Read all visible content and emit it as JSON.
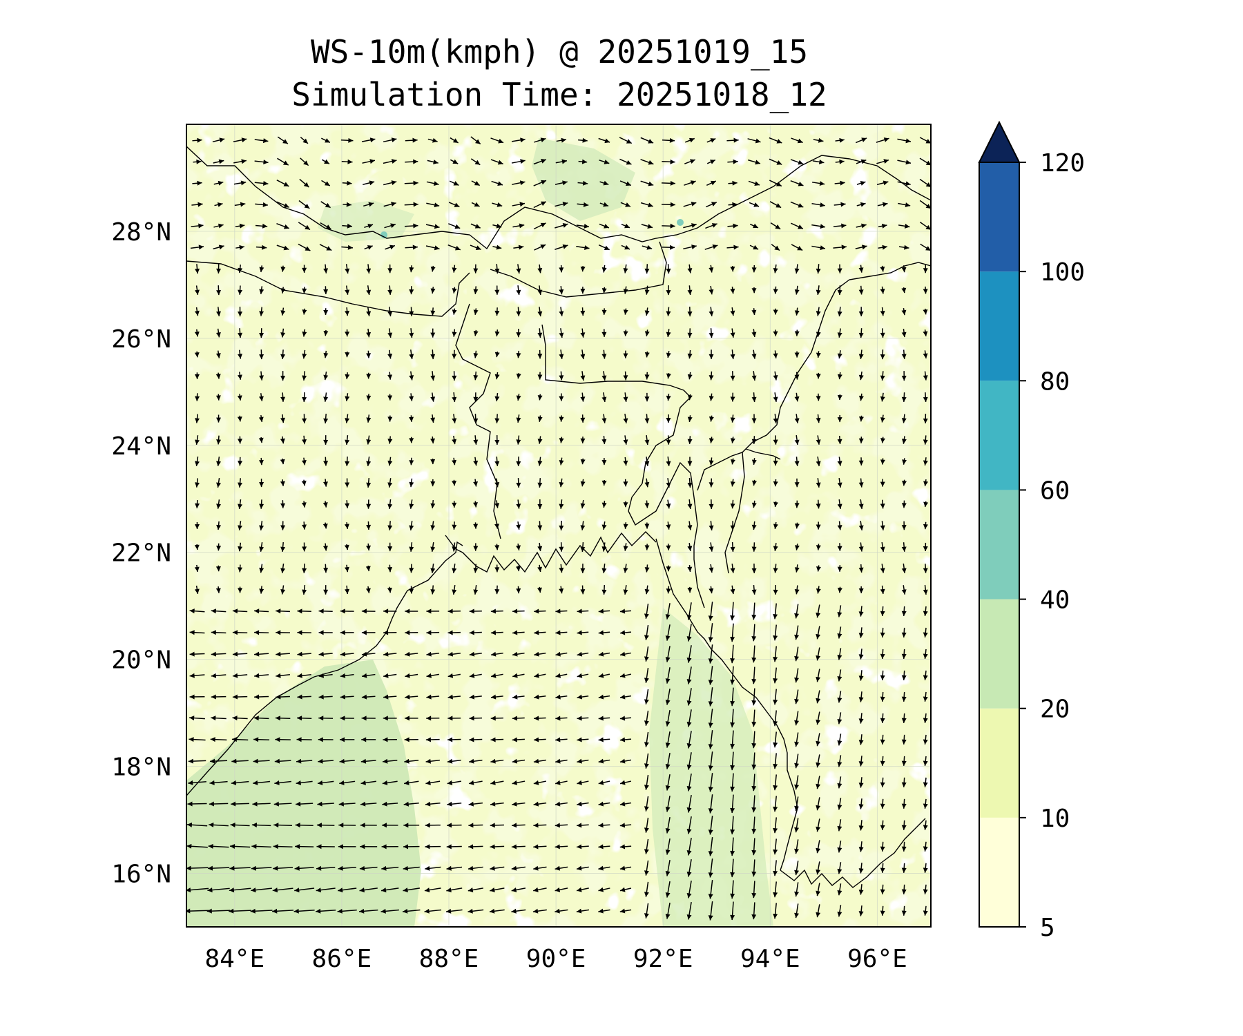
{
  "title": "WS-10m(kmph) @ 20251019_15",
  "subtitle": "Simulation Time: 20251018_12",
  "map": {
    "lon_range": [
      83.1,
      97.0
    ],
    "lat_range": [
      15.0,
      30.0
    ],
    "lon_ticks": [
      84,
      86,
      88,
      90,
      92,
      94,
      96
    ],
    "lon_tick_labels": [
      "84°E",
      "86°E",
      "88°E",
      "90°E",
      "92°E",
      "94°E",
      "96°E"
    ],
    "lat_ticks": [
      16,
      18,
      20,
      22,
      24,
      26,
      28
    ],
    "lat_tick_labels": [
      "16°N",
      "18°N",
      "20°N",
      "22°N",
      "24°N",
      "26°N",
      "28°N"
    ],
    "grid": true,
    "quiver_spacing_deg": 0.4,
    "coastline_color": "#000000"
  },
  "colorbar": {
    "levels": [
      5,
      10,
      20,
      40,
      60,
      80,
      100,
      120
    ],
    "tick_labels": [
      "5",
      "10",
      "20",
      "40",
      "60",
      "80",
      "100",
      "120"
    ],
    "colors": [
      "#ffffd9",
      "#edf8b1",
      "#c7e9b4",
      "#7fcdbb",
      "#41b6c4",
      "#1d91c0",
      "#225ea8",
      "#081d58"
    ],
    "extend": "max",
    "extend_color": "#0c2357"
  }
}
